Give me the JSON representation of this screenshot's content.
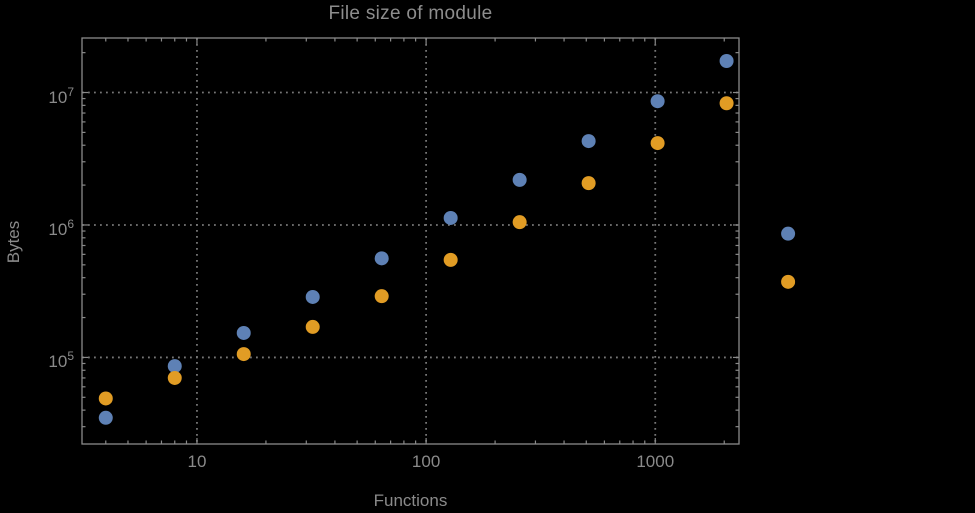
{
  "colors": {
    "background": "#000000",
    "frame": "#8a8a8a",
    "gridline": "#767676",
    "text": "#8a8a8a",
    "series_blue": "#5E81B5",
    "series_orange": "#E19C24"
  },
  "chart_data": {
    "type": "scatter",
    "title": "File size of module",
    "xlabel": "Functions",
    "ylabel": "Bytes",
    "x_scale": "log",
    "y_scale": "log",
    "xlim": [
      3.15,
      2320
    ],
    "ylim": [
      22200,
      25800000
    ],
    "grid": "dotted major gridlines on both axes",
    "legend_position": "none visible",
    "x_ticks": [
      {
        "value": 10,
        "label": "10"
      },
      {
        "value": 100,
        "label": "100"
      },
      {
        "value": 1000,
        "label": "1000"
      }
    ],
    "y_ticks": [
      {
        "value": 100000,
        "base": "10",
        "exp": "5"
      },
      {
        "value": 1000000,
        "base": "10",
        "exp": "6"
      },
      {
        "value": 10000000,
        "base": "10",
        "exp": "7"
      }
    ],
    "log_minor_ticks": true,
    "x": [
      4,
      8,
      16,
      32,
      64,
      128,
      256,
      512,
      1024,
      2048
    ],
    "series": [
      {
        "name": "series-blue",
        "color": "#5E81B5",
        "values": [
          35000,
          86000,
          153000,
          286000,
          560000,
          1130000,
          2190000,
          4300000,
          8600000,
          17300000
        ]
      },
      {
        "name": "series-orange",
        "color": "#E19C24",
        "values": [
          49000,
          70000,
          106000,
          170000,
          290000,
          545000,
          1050000,
          2070000,
          4150000,
          8300000
        ]
      }
    ],
    "unlabeled_markers_right_of_frame": [
      {
        "series": "series-blue",
        "x": 3800,
        "y": 860000
      },
      {
        "series": "series-orange",
        "x": 3800,
        "y": 372000
      }
    ],
    "marker": {
      "shape": "filled-circle",
      "radius_px": 7
    }
  }
}
